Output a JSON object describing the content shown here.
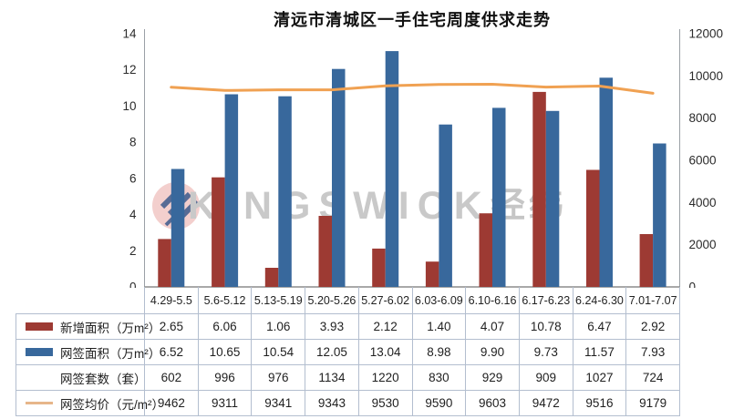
{
  "title": "清远市清城区一手住宅周度供求走势",
  "watermark": {
    "latin": "KINGSWICK",
    "cjk": "经纬"
  },
  "colors": {
    "bar_new_supply": "#9d3a33",
    "bar_signed_area": "#38689c",
    "price_line": "#f0a152",
    "price_line_swatch": "#e7b68a",
    "table_border": "#b3becf",
    "axis_line": "#9aa0a6",
    "axis_bottom_line": "#8c8c8c"
  },
  "chart_data": {
    "type": "bar",
    "note": "combo chart: grouped bars on left axis + line on right axis; data table below with legend keys",
    "title": "清远市清城区一手住宅周度供求走势",
    "categories": [
      "4.29-5.5",
      "5.6-5.12",
      "5.13-5.19",
      "5.20-5.26",
      "5.27-6.02",
      "6.03-6.09",
      "6.10-6.16",
      "6.17-6.23",
      "6.24-6.30",
      "7.01-7.07"
    ],
    "series": [
      {
        "name": "新增面积（万m²）",
        "kind": "bar",
        "axis": "left",
        "color": "#9d3a33",
        "values": [
          "2.65",
          "6.06",
          "1.06",
          "3.93",
          "2.12",
          "1.40",
          "4.07",
          "10.78",
          "6.47",
          "2.92"
        ]
      },
      {
        "name": "网签面积（万m²）",
        "kind": "bar",
        "axis": "left",
        "color": "#38689c",
        "values": [
          "6.52",
          "10.65",
          "10.54",
          "12.05",
          "13.04",
          "8.98",
          "9.90",
          "9.73",
          "11.57",
          "7.93"
        ]
      },
      {
        "name": "网签套数（套）",
        "kind": "table-only",
        "axis": "none",
        "color": "",
        "values": [
          "602",
          "996",
          "976",
          "1134",
          "1220",
          "830",
          "929",
          "909",
          "1027",
          "724"
        ]
      },
      {
        "name": "网签均价（元/m²）",
        "kind": "line",
        "axis": "right",
        "color": "#f0a152",
        "swatch_color": "#e7b68a",
        "values": [
          "9462",
          "9311",
          "9341",
          "9343",
          "9530",
          "9590",
          "9603",
          "9472",
          "9516",
          "9179"
        ]
      }
    ],
    "left_axis": {
      "min": 0,
      "max": 14,
      "step": 2,
      "ticks": [
        "0",
        "2",
        "4",
        "6",
        "8",
        "10",
        "12",
        "14"
      ]
    },
    "right_axis": {
      "min": 0,
      "max": 12000,
      "step": 2000,
      "ticks": [
        "0",
        "2000",
        "4000",
        "6000",
        "8000",
        "10000",
        "12000"
      ]
    },
    "grid": false,
    "legend_position": "table-left"
  }
}
